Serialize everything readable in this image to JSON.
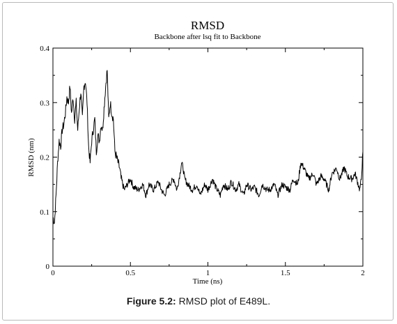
{
  "figure_caption": {
    "label": "Figure 5.2:",
    "text": " RMSD plot of E489L."
  },
  "chart_data": {
    "type": "line",
    "title": "RMSD",
    "subtitle": "Backbone after lsq fit to Backbone",
    "xlabel": "Time (ns)",
    "ylabel": "RMSD (nm)",
    "xlim": [
      0,
      2
    ],
    "ylim": [
      0,
      0.4
    ],
    "x_ticks": [
      "0",
      "0.5",
      "1",
      "1.5",
      "2"
    ],
    "y_ticks": [
      "0",
      "0.1",
      "0.2",
      "0.3",
      "0.4"
    ],
    "grid": false,
    "line_color": "#000000",
    "series": [
      {
        "x": [
          0,
          0.01,
          0.02,
          0.03,
          0.04,
          0.05,
          0.06,
          0.07,
          0.08,
          0.09,
          0.1,
          0.11,
          0.12,
          0.13,
          0.14,
          0.15,
          0.16,
          0.17,
          0.18,
          0.19,
          0.2,
          0.21,
          0.22,
          0.23,
          0.24,
          0.25,
          0.26,
          0.27,
          0.28,
          0.29,
          0.3,
          0.31,
          0.32,
          0.33,
          0.34,
          0.35,
          0.36,
          0.37,
          0.38,
          0.39,
          0.4,
          0.41,
          0.42,
          0.43,
          0.44,
          0.45,
          0.46,
          0.48,
          0.5,
          0.52,
          0.55,
          0.58,
          0.6,
          0.62,
          0.65,
          0.68,
          0.7,
          0.72,
          0.75,
          0.78,
          0.8,
          0.82,
          0.83,
          0.84,
          0.85,
          0.87,
          0.9,
          0.93,
          0.95,
          0.98,
          1.0,
          1.03,
          1.05,
          1.08,
          1.1,
          1.13,
          1.15,
          1.18,
          1.2,
          1.23,
          1.25,
          1.28,
          1.3,
          1.33,
          1.35,
          1.38,
          1.4,
          1.43,
          1.45,
          1.48,
          1.5,
          1.53,
          1.55,
          1.58,
          1.6,
          1.62,
          1.65,
          1.68,
          1.7,
          1.73,
          1.75,
          1.78,
          1.8,
          1.83,
          1.85,
          1.88,
          1.9,
          1.93,
          1.95,
          1.97,
          1.98,
          1.99,
          2.0
        ],
        "y": [
          0.09,
          0.08,
          0.13,
          0.19,
          0.23,
          0.22,
          0.25,
          0.26,
          0.28,
          0.31,
          0.3,
          0.33,
          0.28,
          0.31,
          0.27,
          0.3,
          0.25,
          0.29,
          0.32,
          0.27,
          0.33,
          0.34,
          0.3,
          0.22,
          0.19,
          0.23,
          0.25,
          0.27,
          0.21,
          0.24,
          0.23,
          0.26,
          0.25,
          0.29,
          0.33,
          0.36,
          0.27,
          0.3,
          0.28,
          0.27,
          0.21,
          0.2,
          0.19,
          0.18,
          0.16,
          0.15,
          0.14,
          0.15,
          0.16,
          0.145,
          0.14,
          0.15,
          0.13,
          0.15,
          0.14,
          0.155,
          0.14,
          0.13,
          0.15,
          0.16,
          0.14,
          0.17,
          0.19,
          0.18,
          0.16,
          0.15,
          0.14,
          0.15,
          0.13,
          0.15,
          0.14,
          0.16,
          0.145,
          0.13,
          0.15,
          0.14,
          0.155,
          0.14,
          0.15,
          0.13,
          0.15,
          0.14,
          0.145,
          0.13,
          0.15,
          0.14,
          0.14,
          0.15,
          0.13,
          0.15,
          0.145,
          0.14,
          0.16,
          0.15,
          0.19,
          0.18,
          0.16,
          0.17,
          0.15,
          0.165,
          0.16,
          0.14,
          0.17,
          0.18,
          0.16,
          0.18,
          0.165,
          0.16,
          0.17,
          0.15,
          0.14,
          0.16,
          0.21
        ]
      }
    ]
  }
}
